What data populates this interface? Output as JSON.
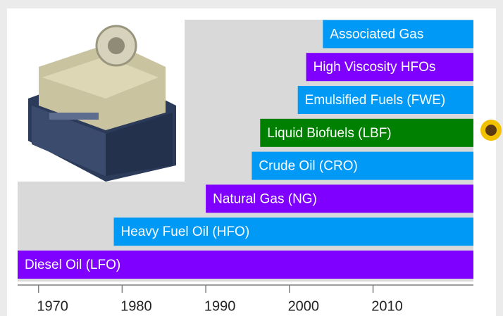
{
  "chart_data": {
    "type": "timeline",
    "categories": [
      "Diesel Oil (LFO)",
      "Heavy Fuel Oil (HFO)",
      "Natural Gas (NG)",
      "Crude Oil (CRO)",
      "Liquid Biofuels (LBF)",
      "Emulsified Fuels (FWE)",
      "High Viscosity HFOs",
      "Associated Gas"
    ],
    "start": [
      1967.5,
      1979,
      1990,
      1995.5,
      1996.5,
      2001,
      2002,
      2004
    ],
    "end": [
      2022,
      2022,
      2022,
      2022,
      2022,
      2022,
      2022,
      2022
    ],
    "colors": [
      "#7f00ff",
      "#0099f5",
      "#7f00ff",
      "#0099f5",
      "#008000",
      "#0099f5",
      "#7f00ff",
      "#0099f5"
    ],
    "xlim": [
      1967.5,
      2022
    ],
    "xticks": [
      1970,
      1980,
      1990,
      2000,
      2010
    ]
  }
}
